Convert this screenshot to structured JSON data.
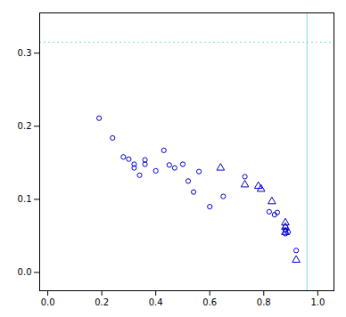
{
  "chart_data": {
    "type": "scatter",
    "series": [
      {
        "color": "#0000CC",
        "marker": "circle",
        "x": [
          0.19,
          0.24,
          0.28,
          0.3,
          0.32,
          0.32,
          0.34,
          0.36,
          0.36,
          0.4,
          0.43,
          0.45,
          0.47,
          0.5,
          0.52,
          0.54,
          0.56,
          0.6,
          0.65,
          0.73,
          0.82,
          0.84,
          0.85,
          0.88,
          0.88,
          0.88,
          0.89,
          0.92
        ],
        "values": [
          0.211,
          0.184,
          0.158,
          0.155,
          0.143,
          0.148,
          0.133,
          0.154,
          0.148,
          0.139,
          0.167,
          0.147,
          0.143,
          0.148,
          0.125,
          0.11,
          0.138,
          0.09,
          0.104,
          0.131,
          0.083,
          0.079,
          0.082,
          0.062,
          0.058,
          0.053,
          0.055,
          0.03
        ]
      },
      {
        "color": "#0000CC",
        "marker": "triangle",
        "x": [
          0.64,
          0.73,
          0.78,
          0.79,
          0.83,
          0.88,
          0.88,
          0.88,
          0.92
        ],
        "values": [
          0.143,
          0.12,
          0.118,
          0.114,
          0.097,
          0.062,
          0.068,
          0.055,
          0.017
        ]
      }
    ],
    "hlines": [
      {
        "value": 0.315,
        "color": "#7FD8F0",
        "line_style": "dotted"
      }
    ],
    "vlines": [
      {
        "value": 0.96,
        "color": "#7FD8F0",
        "line_style": "solid"
      }
    ],
    "xlim": [
      -0.03,
      1.06
    ],
    "ylim": [
      -0.025,
      0.355
    ],
    "xticks": [
      {
        "value": 0,
        "label": "0.0"
      },
      0.2,
      0.4,
      0.6,
      0.8,
      {
        "value": 1,
        "label": "1.0"
      }
    ],
    "yticks": [
      {
        "value": 0,
        "label": "0.0"
      },
      0.1,
      0.2,
      0.3
    ],
    "grid": false
  }
}
